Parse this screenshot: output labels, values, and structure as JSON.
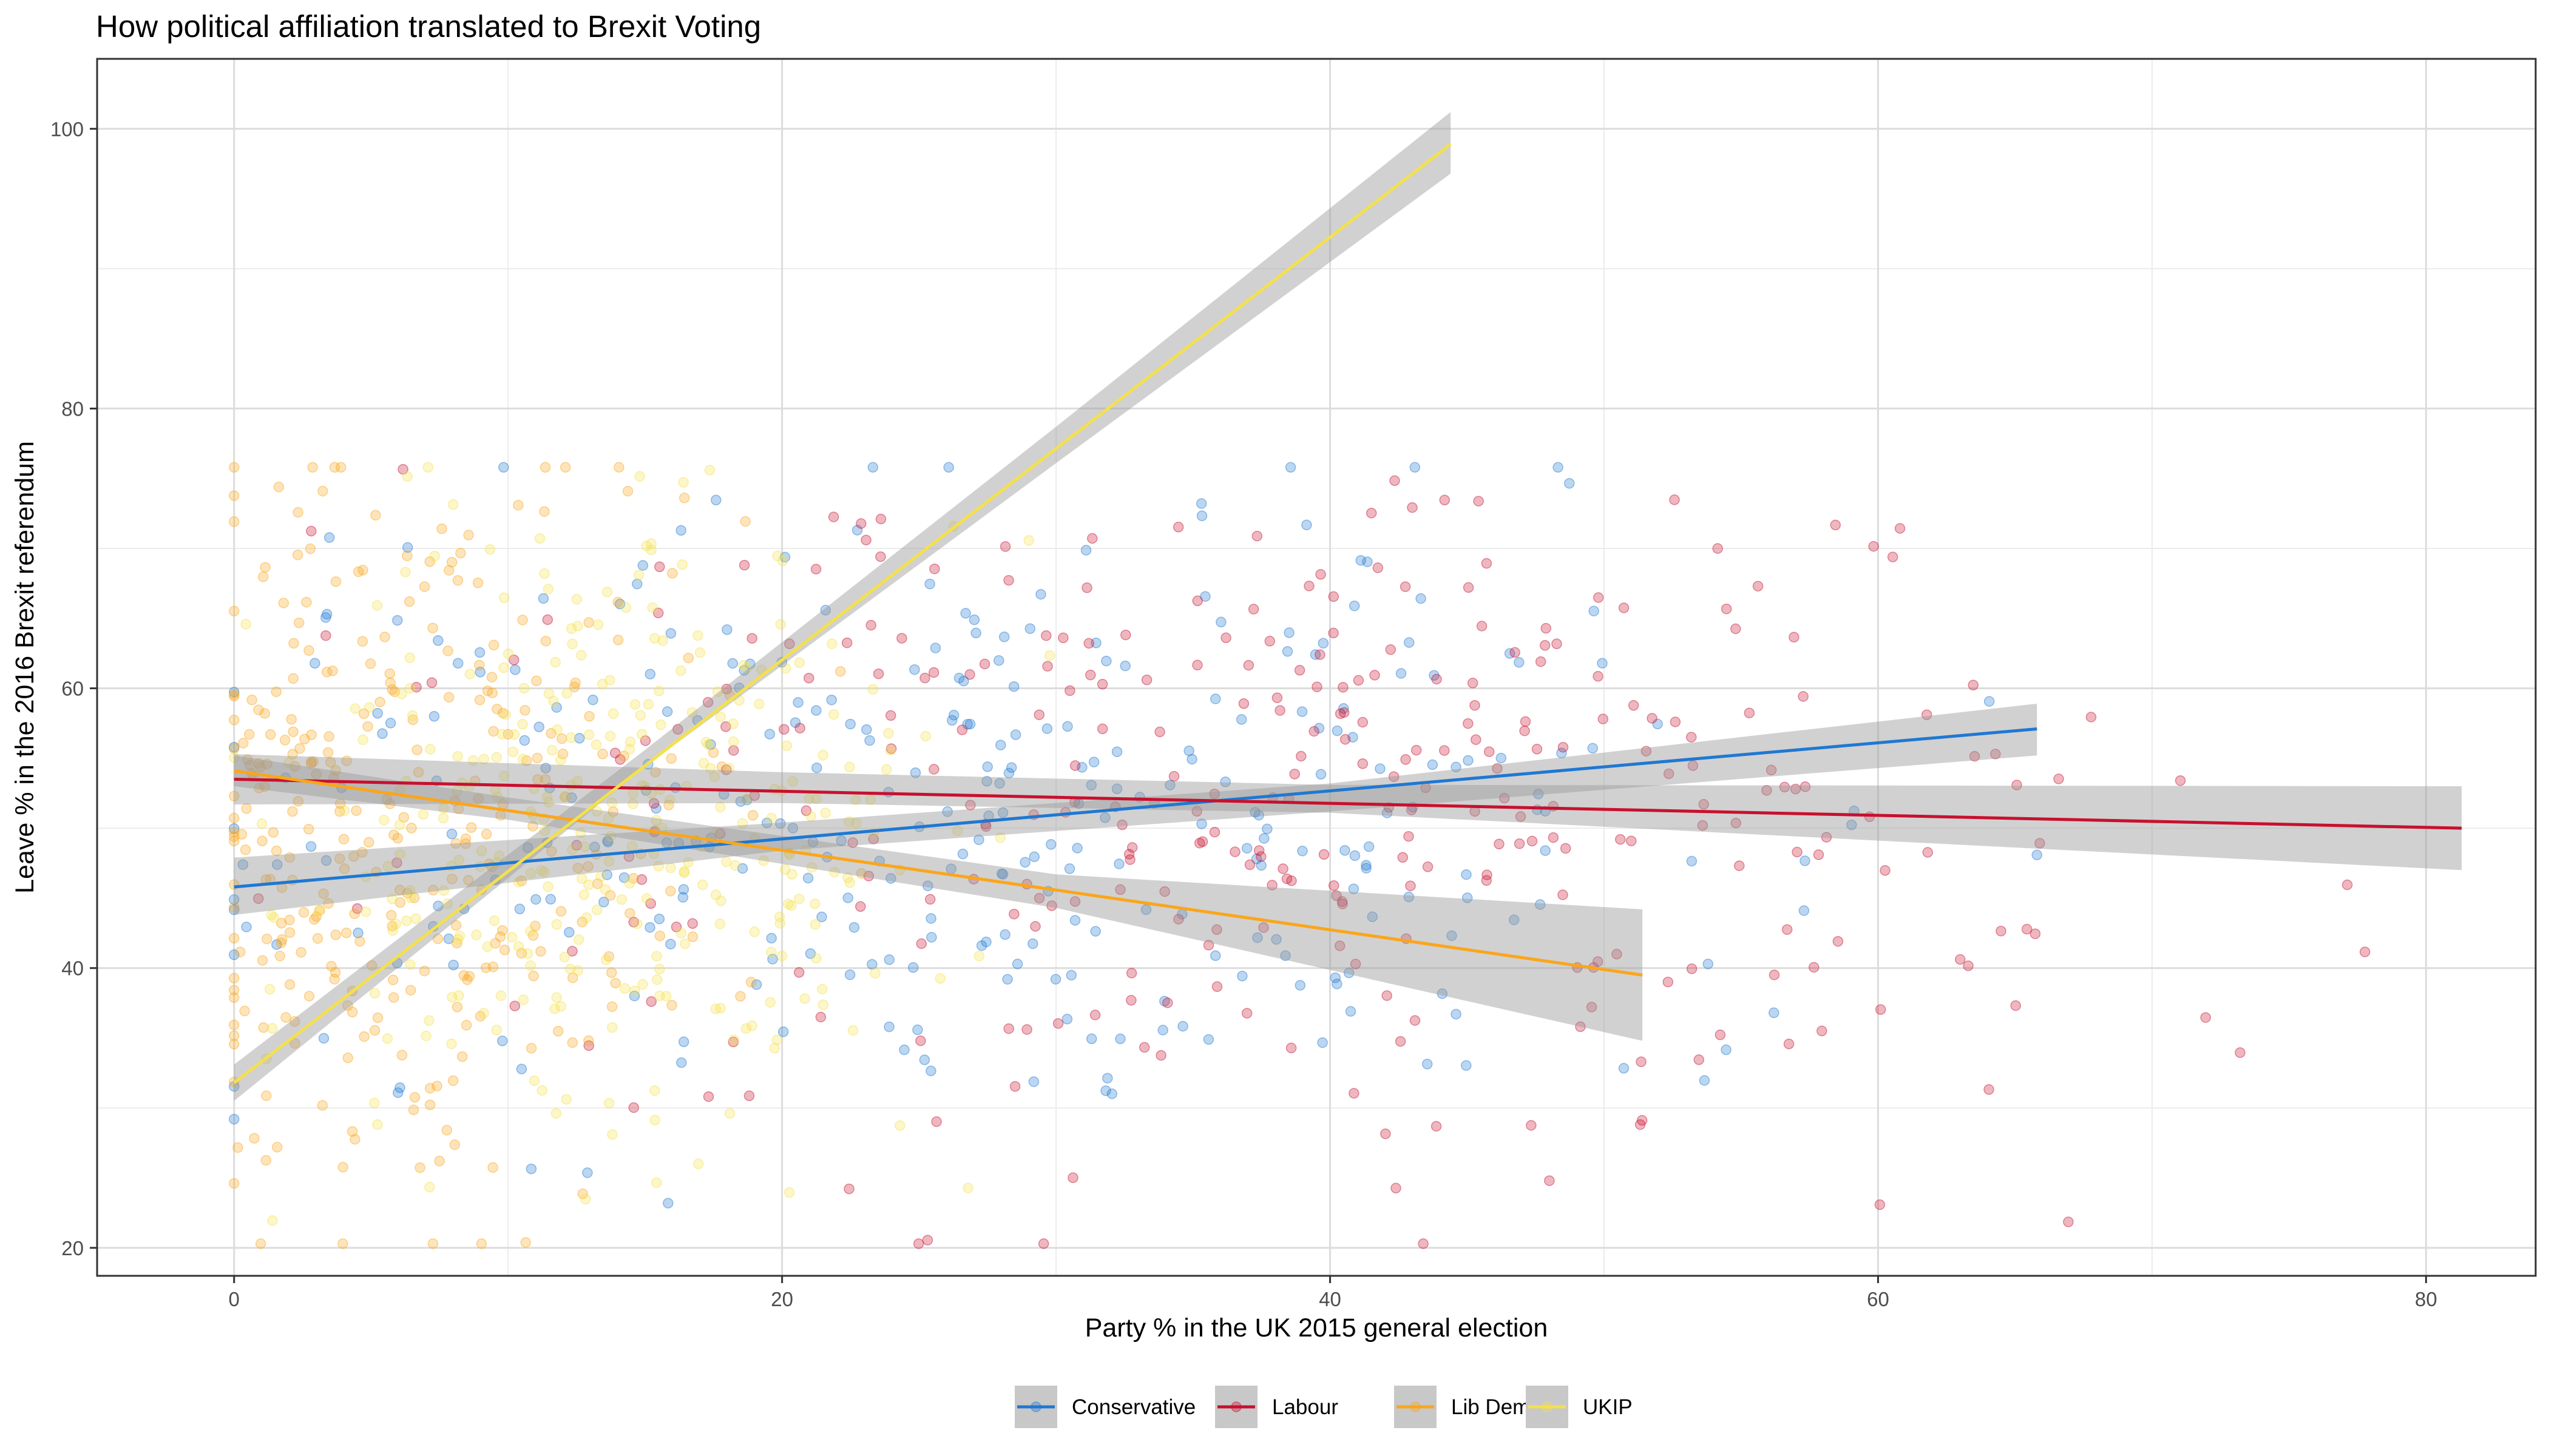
{
  "chart_data": {
    "type": "scatter",
    "title": "How political affiliation translated to Brexit Voting",
    "xlabel": "Party % in the UK 2015 general election",
    "ylabel": "Leave % in the 2016 Brexit referendum",
    "xlim": [
      -5,
      84
    ],
    "ylim": [
      18,
      105
    ],
    "x_ticks": [
      0,
      20,
      40,
      60,
      80
    ],
    "y_ticks": [
      20,
      40,
      60,
      80,
      100
    ],
    "grid": true,
    "legend_position": "bottom",
    "series": [
      {
        "name": "Conservative",
        "color": "#1f78d2",
        "point_opacity": 0.3,
        "x_range": [
          0,
          65.8
        ],
        "x_center": 28,
        "x_spread": 14,
        "y_mean": 51,
        "y_spread": 11,
        "n_points": 330,
        "trend": {
          "x": [
            0,
            65.8
          ],
          "y": [
            45.8,
            57.1
          ]
        },
        "ci_band": {
          "x": [
            0,
            20,
            40,
            65.8
          ],
          "lower": [
            43.8,
            48.4,
            51.2,
            55.2
          ],
          "upper": [
            47.9,
            50.4,
            53.2,
            58.9
          ]
        }
      },
      {
        "name": "Labour",
        "color": "#c8102e",
        "point_opacity": 0.3,
        "x_range": [
          0,
          81.3
        ],
        "x_center": 38,
        "x_spread": 15,
        "y_mean": 52,
        "y_spread": 11,
        "n_points": 330,
        "trend": {
          "x": [
            0,
            81.3
          ],
          "y": [
            53.5,
            50.0
          ]
        },
        "ci_band": {
          "x": [
            0,
            20,
            40,
            81.3
          ],
          "lower": [
            51.7,
            51.8,
            51.1,
            47.0
          ],
          "upper": [
            55.3,
            54.0,
            53.1,
            53.0
          ]
        }
      },
      {
        "name": "Lib Dems",
        "color": "#faa61a",
        "point_opacity": 0.3,
        "x_range": [
          0,
          51.4
        ],
        "x_center": 6,
        "x_spread": 6,
        "y_mean": 50,
        "y_spread": 13,
        "n_points": 330,
        "trend": {
          "x": [
            0,
            51.4
          ],
          "y": [
            54.1,
            39.5
          ]
        },
        "ci_band": {
          "x": [
            0,
            10,
            30,
            51.4
          ],
          "lower": [
            53.0,
            50.6,
            44.3,
            34.8
          ],
          "upper": [
            55.2,
            52.2,
            46.7,
            44.2
          ]
        }
      },
      {
        "name": "UKIP",
        "color": "#f4e04d",
        "point_opacity": 0.3,
        "x_range": [
          0,
          44.4
        ],
        "x_center": 14,
        "x_spread": 6,
        "y_mean": 50,
        "y_spread": 11,
        "n_points": 330,
        "trend": {
          "x": [
            0,
            44.4
          ],
          "y": [
            31.8,
            98.9
          ]
        },
        "ci_band": {
          "x": [
            0,
            15,
            30,
            44.4
          ],
          "lower": [
            30.5,
            54.4,
            76.1,
            96.8
          ],
          "upper": [
            33.1,
            55.6,
            78.7,
            101.2
          ]
        }
      }
    ]
  }
}
